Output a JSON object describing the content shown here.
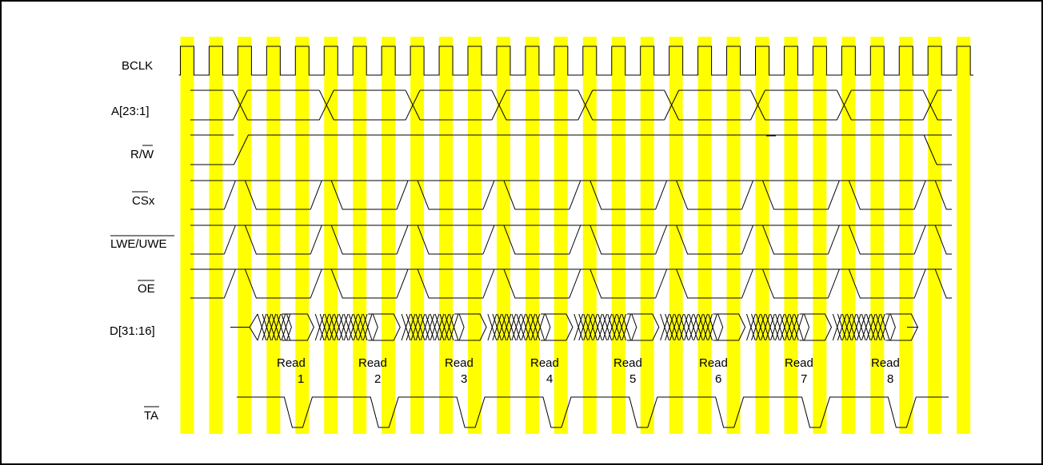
{
  "diagram": {
    "type": "timing-diagram",
    "signals": [
      {
        "id": "bclk",
        "label": "BCLK",
        "overline": false
      },
      {
        "id": "addr",
        "label": "A[23:1]",
        "overline": false
      },
      {
        "id": "rw",
        "label": "R/",
        "label_suffix": "W",
        "overline_suffix": true
      },
      {
        "id": "cs",
        "label": "CS",
        "label_suffix": "x",
        "overline_main": true
      },
      {
        "id": "we",
        "label": "LWE/UWE",
        "overline": true
      },
      {
        "id": "oe",
        "label": "OE",
        "overline": true
      },
      {
        "id": "data",
        "label": "D[31:16]",
        "overline": false
      },
      {
        "id": "ta",
        "label": "TA",
        "overline": true
      }
    ],
    "read_word": "Read",
    "reads": [
      "1",
      "2",
      "3",
      "4",
      "5",
      "6",
      "7",
      "8"
    ],
    "colors": {
      "stripe": "#ffff00",
      "line": "#000000",
      "background": "#ffffff",
      "border": "#000000"
    },
    "clock_cycles": 28,
    "bus_cycles_per_read": 3
  }
}
